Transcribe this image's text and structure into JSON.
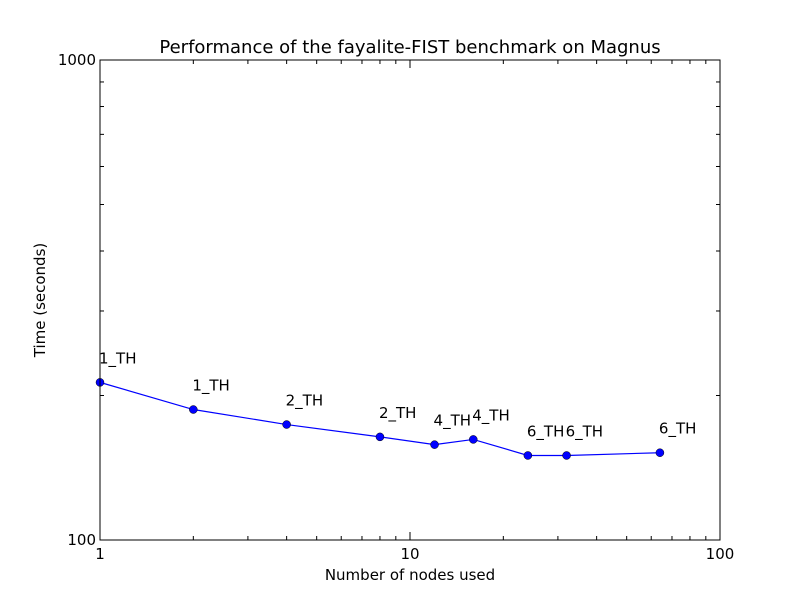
{
  "chart_data": {
    "type": "line",
    "title": "Performance of the fayalite-FIST benchmark on Magnus",
    "xlabel": "Number of nodes used",
    "ylabel": "Time (seconds)",
    "xscale": "log",
    "yscale": "log",
    "xlim": [
      1,
      100
    ],
    "ylim": [
      100,
      1000
    ],
    "xticks": [
      {
        "value": 1,
        "label": "1"
      },
      {
        "value": 10,
        "label": "10"
      },
      {
        "value": 100,
        "label": "100"
      }
    ],
    "yticks": [
      {
        "value": 100,
        "label": "100"
      },
      {
        "value": 1000,
        "label": "1000"
      }
    ],
    "grid": false,
    "series": [
      {
        "color": "#0000ff",
        "marker": "circle",
        "x": [
          1,
          2,
          4,
          8,
          12,
          16,
          24,
          32,
          64
        ],
        "y": [
          213,
          187,
          174,
          164,
          158,
          162,
          150,
          150,
          152
        ],
        "point_labels": [
          "1_TH",
          "1_TH",
          "2_TH",
          "2_TH",
          "4_TH",
          "4_TH",
          "6_TH",
          "6_TH",
          "6_TH"
        ]
      }
    ]
  }
}
